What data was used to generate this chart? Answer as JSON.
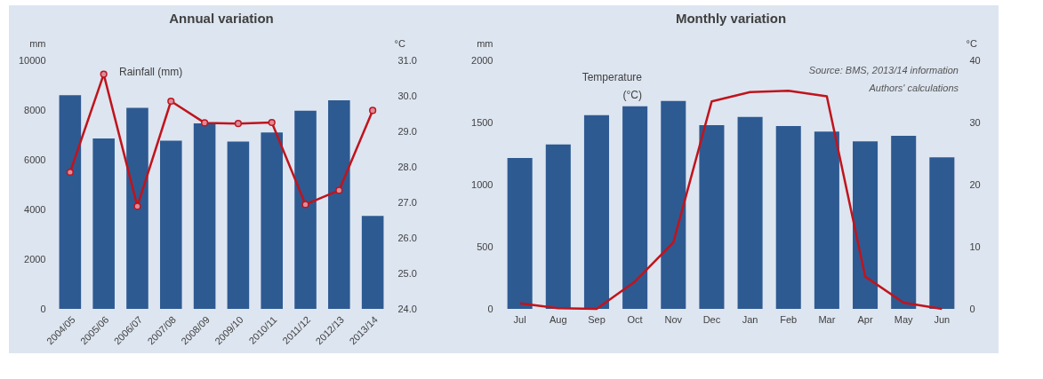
{
  "chart_data": [
    {
      "type": "bar",
      "title": "Annual variation",
      "ylabel": "mm",
      "y2label": "°C",
      "marker": "circle",
      "categories": [
        "2004/05",
        "2005/06",
        "2006/07",
        "2007/08",
        "2008/09",
        "2009/10",
        "2010/11",
        "2011/12",
        "2012/13",
        "2013/14"
      ],
      "series": [
        {
          "color": "#2e5a92",
          "values": [
            8600,
            6860,
            8090,
            6770,
            7460,
            6730,
            7100,
            7970,
            8390,
            3740
          ]
        },
        {
          "type": "line",
          "axis": "y2",
          "color": "#c0141c",
          "values": [
            27.85,
            30.61,
            26.89,
            29.85,
            29.24,
            29.22,
            29.25,
            26.94,
            27.34,
            29.59
          ]
        }
      ],
      "ylim": [
        0,
        10000
      ],
      "yticks": [
        0,
        2000,
        4000,
        6000,
        8000,
        10000
      ],
      "y2lim": [
        24,
        31
      ],
      "y2ticks": [
        {
          "value": 24,
          "label": "24.0"
        },
        {
          "value": 25,
          "label": "25.0"
        },
        {
          "value": 26,
          "label": "26.0"
        },
        {
          "value": 27,
          "label": "27.0"
        },
        {
          "value": 28,
          "label": "28.0"
        },
        {
          "value": 29,
          "label": "29.0"
        },
        {
          "value": 30,
          "label": "30.0"
        },
        {
          "value": 31,
          "label": "31.0"
        }
      ],
      "annotations": [
        "Rainfall (mm)"
      ]
    },
    {
      "type": "bar",
      "title": "Monthly variation",
      "ylabel": "mm",
      "y2label": "°C",
      "categories": [
        "Jul",
        "Aug",
        "Sep",
        "Oct",
        "Nov",
        "Dec",
        "Jan",
        "Feb",
        "Mar",
        "Apr",
        "May",
        "Jun"
      ],
      "series": [
        {
          "color": "#2e5a92",
          "values": [
            1214,
            1323,
            1559,
            1630,
            1674,
            1479,
            1545,
            1471,
            1427,
            1348,
            1392,
            1219
          ]
        },
        {
          "type": "line",
          "axis": "y2",
          "color": "#c0141c",
          "values": [
            0.9,
            0.1,
            0,
            4.4,
            10.7,
            33.4,
            34.9,
            35.1,
            34.2,
            5.2,
            1.0,
            0
          ]
        }
      ],
      "ylim": [
        0,
        2000
      ],
      "yticks": [
        0,
        500,
        1000,
        1500,
        2000
      ],
      "y2lim": [
        0,
        40
      ],
      "y2ticks": [
        0,
        10,
        20,
        30,
        40
      ],
      "annotations": [
        "Temperature (°C)",
        "Source: BMS, 2013/14 information",
        "Authors' calculations"
      ]
    }
  ]
}
